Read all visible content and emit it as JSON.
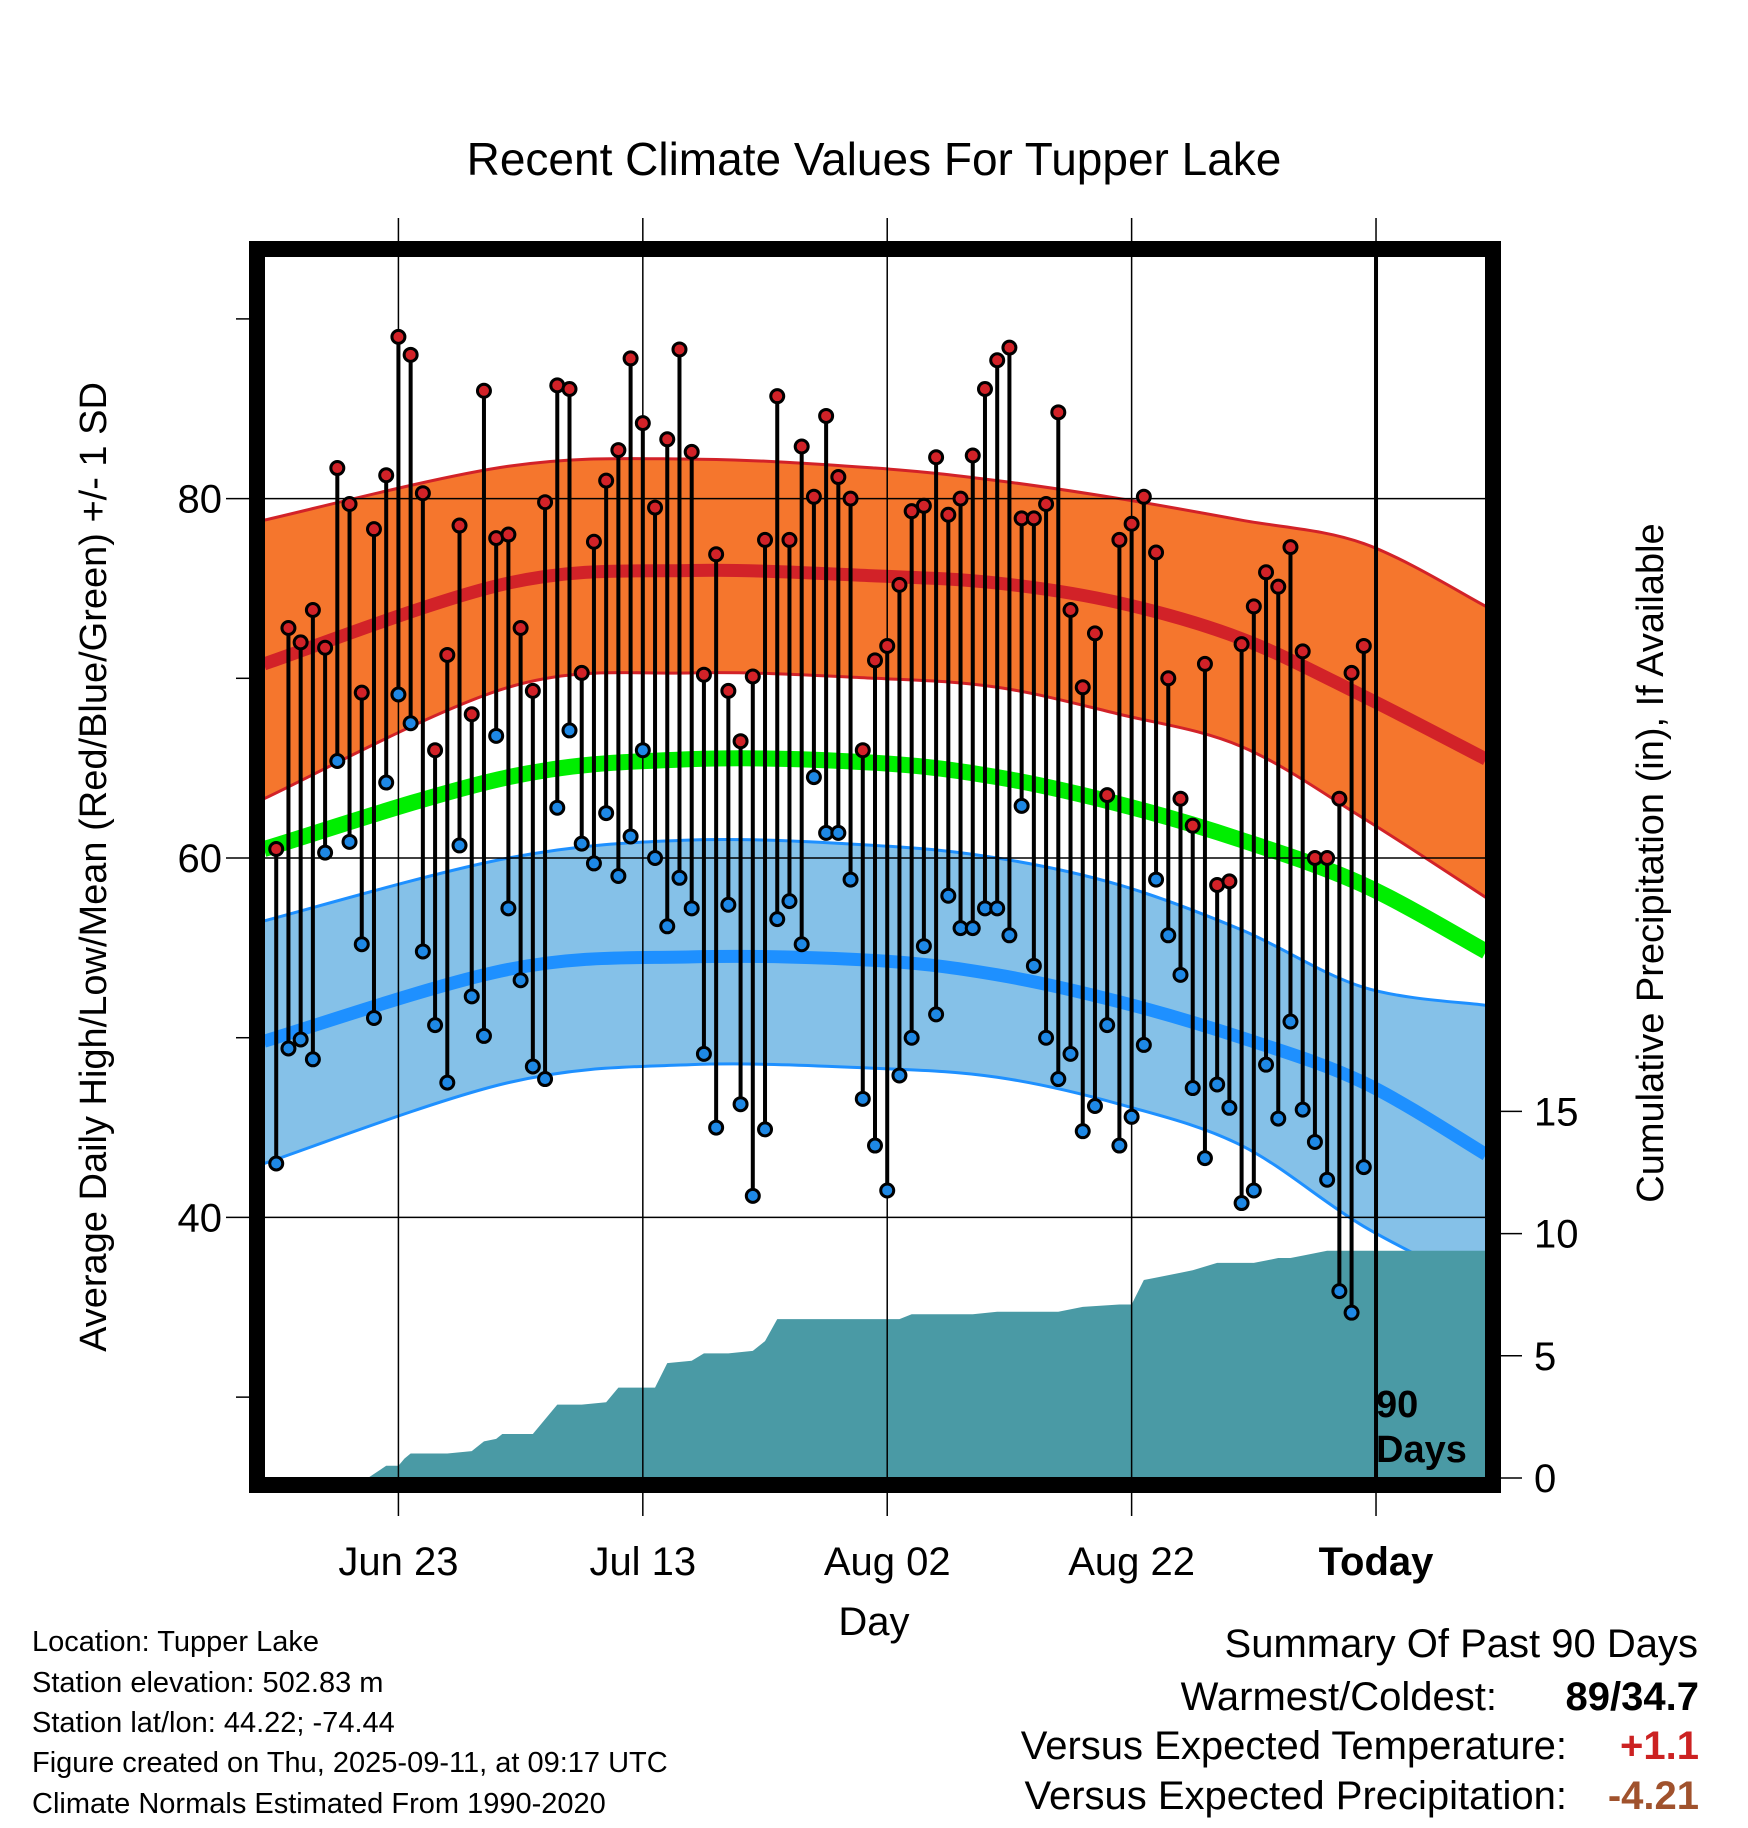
{
  "chart_data": {
    "type": "line",
    "title": "Recent Climate Values For Tupper Lake",
    "xlabel": "Day",
    "ylabel_left": "Average Daily High/Low/Mean (Red/Blue/Green) +/- 1 SD",
    "ylabel_right": "Cumulative Precipitation (in), If Available",
    "x_tick_labels": [
      "Jun 23",
      "Jul 13",
      "Aug 02",
      "Aug 22",
      "Today"
    ],
    "x_tick_days": [
      11,
      31,
      51,
      71,
      91
    ],
    "y_left_ticks": [
      40,
      60,
      80
    ],
    "y_right_ticks": [
      0,
      5,
      10,
      15
    ],
    "ylim_left": [
      25.5,
      93.5
    ],
    "ylim_right": [
      0,
      50
    ],
    "xlim": [
      0,
      100
    ],
    "today_marker_label": [
      "90",
      "Days"
    ],
    "colors": {
      "high_band": "#f5762d",
      "high_line": "#d22228",
      "low_band": "#85c1e8",
      "low_line": "#1e90ff",
      "mean_line": "#00ee00",
      "precip": "#4a9aa5",
      "high_dot": "#d22228",
      "low_dot": "#1e88e5"
    },
    "normals": {
      "days": [
        0,
        20,
        35,
        50,
        60,
        70,
        80,
        90,
        100
      ],
      "high_mean": [
        70.8,
        75.3,
        76.0,
        75.7,
        75.3,
        74.2,
        72.2,
        69.0,
        65.5
      ],
      "high_upper": [
        78.8,
        81.8,
        82.2,
        81.7,
        81.0,
        80.0,
        78.8,
        77.5,
        74.0
      ],
      "high_lower": [
        63.3,
        69.5,
        70.3,
        70.0,
        69.5,
        68.0,
        66.2,
        62.2,
        57.8
      ],
      "mean": [
        60.5,
        64.5,
        65.5,
        65.3,
        64.5,
        63.0,
        61.0,
        58.5,
        54.8
      ],
      "low_mean": [
        49.8,
        53.8,
        54.5,
        54.3,
        53.5,
        52.0,
        50.0,
        47.5,
        43.5
      ],
      "low_upper": [
        56.5,
        60.0,
        61.0,
        60.7,
        60.0,
        58.5,
        56.0,
        52.8,
        51.8
      ],
      "low_lower": [
        43.0,
        47.5,
        48.5,
        48.3,
        47.8,
        46.3,
        44.0,
        39.5,
        36.0
      ]
    },
    "series": [
      {
        "name": "High",
        "values": [
          60.5,
          72.8,
          72.0,
          73.8,
          71.7,
          81.7,
          79.7,
          69.2,
          78.3,
          81.3,
          89.0,
          88.0,
          80.3,
          66.0,
          71.3,
          78.5,
          68.0,
          86.0,
          77.8,
          78.0,
          72.8,
          69.3,
          79.8,
          86.3,
          86.1,
          70.3,
          77.6,
          81.0,
          82.7,
          87.8,
          84.2,
          79.5,
          83.3,
          88.3,
          82.6,
          70.2,
          76.9,
          69.3,
          66.5,
          70.1,
          77.7,
          85.7,
          77.7,
          82.9,
          80.1,
          84.6,
          81.2,
          80.0,
          66.0,
          71.0,
          71.8,
          75.2,
          79.3,
          79.6,
          82.3,
          79.1,
          80.0,
          82.4,
          86.1,
          87.7,
          88.4,
          78.9,
          78.9,
          79.7,
          84.8,
          73.8,
          69.5,
          72.5,
          63.5,
          77.7,
          78.6,
          80.1,
          77.0,
          70.0,
          63.3,
          61.8,
          70.8,
          58.5,
          58.7,
          71.9,
          74.0,
          75.9,
          75.1,
          77.3,
          71.5,
          60.0,
          60.0,
          63.3,
          70.3,
          71.8
        ]
      },
      {
        "name": "Low",
        "values": [
          43.0,
          49.4,
          49.9,
          48.8,
          60.3,
          65.4,
          60.9,
          55.2,
          51.1,
          64.2,
          69.1,
          67.5,
          54.8,
          50.7,
          47.5,
          60.7,
          52.3,
          50.1,
          66.8,
          57.2,
          53.2,
          48.4,
          47.7,
          62.8,
          67.1,
          60.8,
          59.7,
          62.5,
          59.0,
          61.2,
          66.0,
          60.0,
          56.2,
          58.9,
          57.2,
          49.1,
          45.0,
          57.4,
          46.3,
          41.2,
          44.9,
          56.6,
          57.6,
          55.2,
          64.5,
          61.4,
          61.4,
          58.8,
          46.6,
          44.0,
          41.5,
          47.9,
          50.0,
          55.1,
          51.3,
          57.9,
          56.1,
          56.1,
          57.2,
          57.2,
          55.7,
          62.9,
          54.0,
          50.0,
          47.7,
          49.1,
          44.8,
          46.2,
          50.7,
          44.0,
          45.6,
          49.6,
          58.8,
          55.7,
          53.5,
          47.2,
          43.3,
          47.4,
          46.1,
          40.8,
          41.5,
          48.5,
          45.5,
          50.9,
          46.0,
          44.2,
          42.1,
          35.9,
          34.7,
          42.8
        ]
      }
    ],
    "precip": {
      "days": [
        0,
        8.5,
        10,
        11,
        11.5,
        12,
        15,
        17,
        18,
        19,
        19.5,
        22,
        24,
        25,
        26,
        28,
        29,
        30,
        32,
        33,
        35,
        36,
        37,
        38,
        40,
        41,
        42,
        44,
        45,
        46,
        48,
        50,
        52,
        53,
        55,
        56,
        58,
        60,
        65,
        67,
        70,
        71,
        72,
        73,
        75,
        76,
        78,
        79,
        81,
        82,
        83,
        84,
        85,
        87,
        89,
        91,
        100
      ],
      "values": [
        0,
        0,
        0.5,
        0.5,
        0.8,
        1.0,
        1.0,
        1.1,
        1.5,
        1.6,
        1.8,
        1.8,
        3.0,
        3.0,
        3.0,
        3.1,
        3.7,
        3.7,
        3.7,
        4.7,
        4.8,
        5.1,
        5.1,
        5.1,
        5.2,
        5.6,
        6.5,
        6.5,
        6.5,
        6.5,
        6.5,
        6.5,
        6.5,
        6.7,
        6.7,
        6.7,
        6.7,
        6.8,
        6.8,
        7.0,
        7.1,
        7.1,
        8.1,
        8.2,
        8.4,
        8.5,
        8.8,
        8.8,
        8.8,
        8.9,
        9.0,
        9.0,
        9.1,
        9.3,
        9.3,
        9.3,
        9.3
      ]
    }
  },
  "footer": {
    "location": "Location: Tupper Lake",
    "elevation": "Station elevation: 502.83 m",
    "latlon": "Station lat/lon: 44.22; -74.44",
    "created": "Figure created on Thu, 2025-09-11, at 09:17 UTC",
    "normals": "Climate Normals Estimated From 1990-2020"
  },
  "summary": {
    "title": "Summary Of Past 90 Days",
    "warm_cold_label": "Warmest/Coldest:",
    "warm_cold_value": "89/34.7",
    "temp_label": "Versus Expected Temperature:",
    "temp_value": "+1.1",
    "temp_color": "#cc2222",
    "precip_label": "Versus Expected Precipitation:",
    "precip_value": "-4.21",
    "precip_color": "#a0522d"
  }
}
